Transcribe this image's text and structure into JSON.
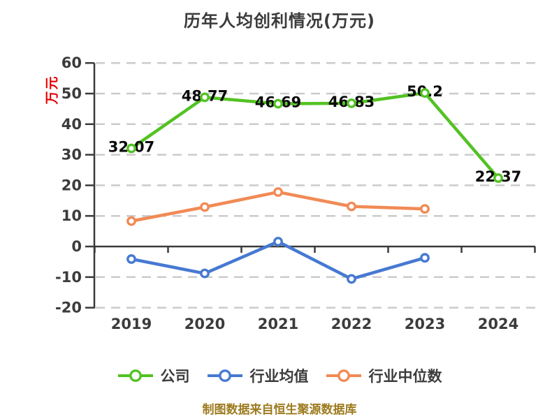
{
  "title": "历年人均创利情况(万元)",
  "caption": "制图数据来自恒生聚源数据库",
  "colors": {
    "background": "#ffffff",
    "axis": "#3a3a3a",
    "grid": "#cbcbcb",
    "tick_text": "#3b3b3b",
    "data_label_text": "#0a0a0a",
    "title_text": "#3b3b3b",
    "unit_text": "#e60000",
    "caption_text": "#9c7a1e",
    "company_green": "#53c223",
    "industry_avg_blue": "#4679d2",
    "industry_median_orange": "#f18a55"
  },
  "chart_data": {
    "type": "line",
    "title": "历年人均创利情况(万元)",
    "ylabel": "万元",
    "categories": [
      "2019",
      "2020",
      "2021",
      "2022",
      "2023",
      "2024"
    ],
    "ylim": [
      -20,
      60
    ],
    "ytick_step": 10,
    "yticks": [
      "60",
      "50",
      "40",
      "30",
      "20",
      "10",
      "0",
      "-10",
      "-20"
    ],
    "grid": "horizontal-dashed",
    "legend_position": "bottom",
    "series": [
      {
        "name": "公司",
        "color": "#53c223",
        "values": [
          32.07,
          48.77,
          46.69,
          46.83,
          50.2,
          22.37
        ],
        "point_labels": [
          "32.07",
          "48.77",
          "46.69",
          "46.83",
          "50.2",
          "22.37"
        ]
      },
      {
        "name": "行业均值",
        "color": "#4679d2",
        "values": [
          -4.1,
          -8.8,
          1.6,
          -10.6,
          -3.7,
          null
        ]
      },
      {
        "name": "行业中位数",
        "color": "#f18a55",
        "values": [
          8.3,
          12.9,
          17.8,
          13.1,
          12.3,
          null
        ]
      }
    ]
  }
}
